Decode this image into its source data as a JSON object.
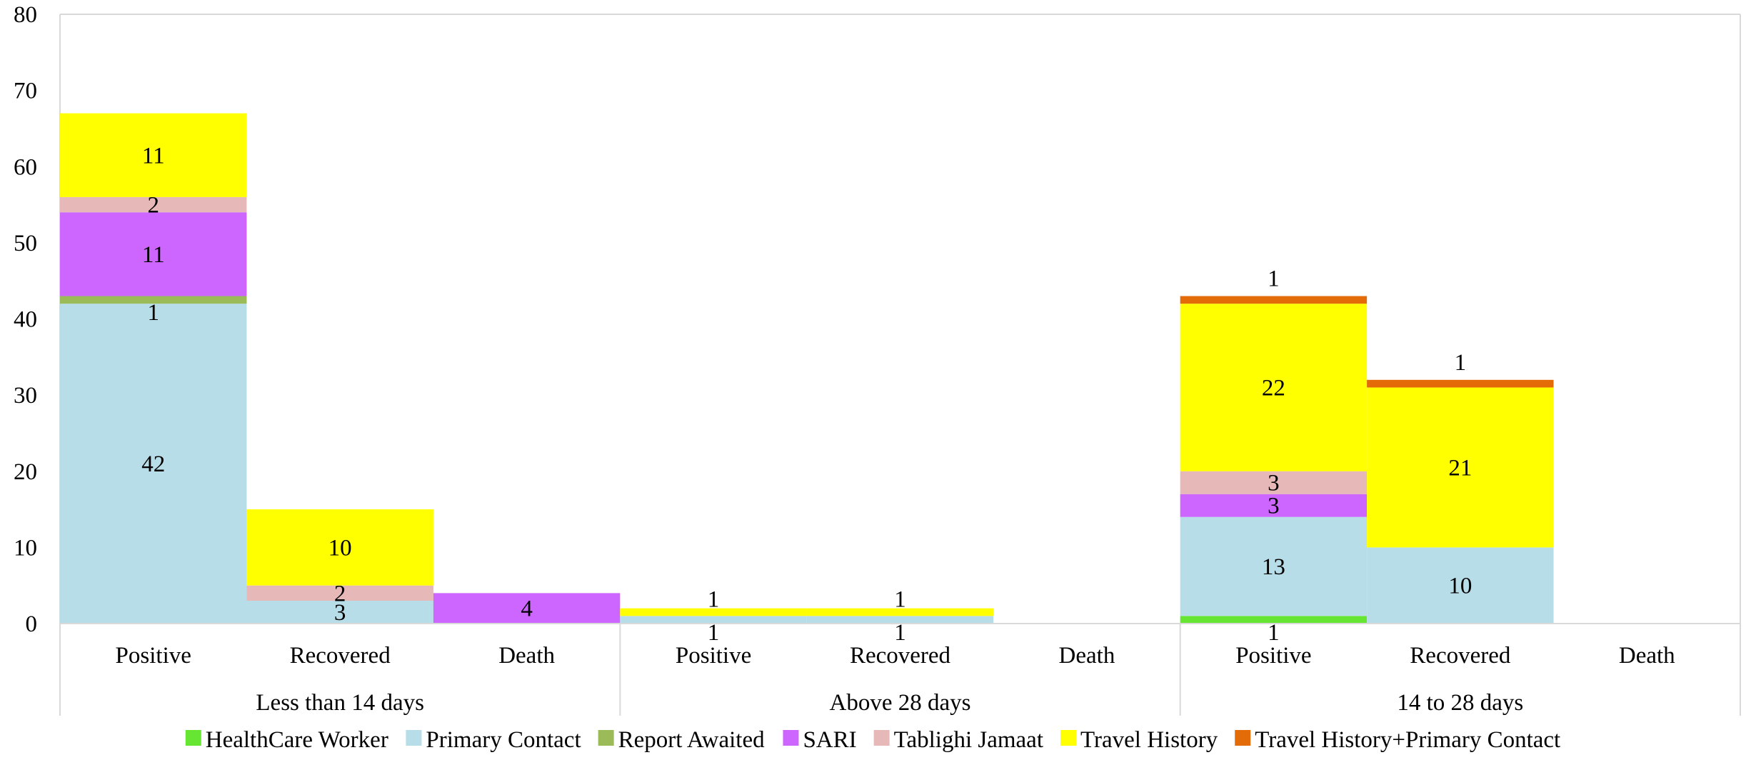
{
  "chart_data": {
    "type": "bar",
    "stacked": true,
    "ylim": [
      0,
      80
    ],
    "yticks": [
      0,
      10,
      20,
      30,
      40,
      50,
      60,
      70,
      80
    ],
    "grid": false,
    "legend_position": "bottom",
    "groups": [
      "Less than 14 days",
      "Above 28 days",
      "14 to 28 days"
    ],
    "sub_categories": [
      "Positive",
      "Recovered",
      "Death"
    ],
    "series": [
      {
        "name": "HealthCare Worker",
        "color": "#66E633",
        "values": [
          0,
          0,
          0,
          0,
          0,
          0,
          1,
          0,
          0
        ]
      },
      {
        "name": "Primary Contact",
        "color": "#B7DDE8",
        "values": [
          42,
          3,
          0,
          1,
          1,
          0,
          13,
          10,
          0
        ]
      },
      {
        "name": "Report Awaited",
        "color": "#9BBB59",
        "values": [
          1,
          0,
          0,
          0,
          0,
          0,
          0,
          0,
          0
        ]
      },
      {
        "name": "SARI",
        "color": "#CC66FF",
        "values": [
          11,
          0,
          4,
          0,
          0,
          0,
          3,
          0,
          0
        ]
      },
      {
        "name": "Tablighi Jamaat",
        "color": "#E6B9B8",
        "values": [
          2,
          2,
          0,
          0,
          0,
          0,
          3,
          0,
          0
        ]
      },
      {
        "name": "Travel History",
        "color": "#FFFF00",
        "values": [
          11,
          10,
          0,
          1,
          1,
          0,
          22,
          21,
          0
        ]
      },
      {
        "name": "Travel History+Primary Contact",
        "color": "#E36C09",
        "values": [
          0,
          0,
          0,
          0,
          0,
          0,
          1,
          1,
          0
        ]
      }
    ]
  }
}
